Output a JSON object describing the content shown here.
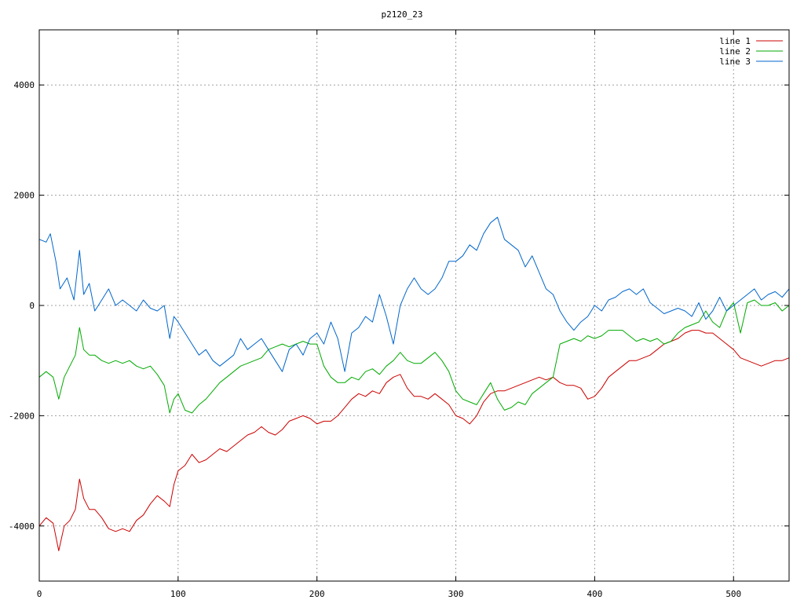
{
  "chart_data": {
    "type": "line",
    "title": "p2120_23",
    "xlabel": "",
    "ylabel": "",
    "xlim": [
      0,
      540
    ],
    "ylim": [
      -5000,
      5000
    ],
    "x_ticks": [
      0,
      100,
      200,
      300,
      400,
      500
    ],
    "y_ticks": [
      -4000,
      -2000,
      0,
      2000,
      4000
    ],
    "x_tick_labels": [
      "0",
      "100",
      "200",
      "300",
      "400",
      "500"
    ],
    "y_tick_labels": [
      "-4000",
      "-2000",
      "0",
      "2000",
      "4000"
    ],
    "grid": true,
    "legend_position": "top-right",
    "series": [
      {
        "name": "line 1",
        "color": "#cc0000",
        "x": [
          0,
          5,
          10,
          14,
          18,
          22,
          26,
          29,
          32,
          36,
          40,
          45,
          50,
          55,
          60,
          65,
          70,
          75,
          80,
          85,
          90,
          94,
          97,
          100,
          105,
          110,
          115,
          120,
          125,
          130,
          135,
          140,
          145,
          150,
          155,
          160,
          165,
          170,
          175,
          180,
          185,
          190,
          195,
          200,
          205,
          210,
          215,
          220,
          225,
          230,
          235,
          240,
          245,
          250,
          255,
          260,
          265,
          270,
          275,
          280,
          285,
          290,
          295,
          300,
          305,
          310,
          315,
          320,
          325,
          330,
          335,
          340,
          345,
          350,
          355,
          360,
          365,
          370,
          375,
          380,
          385,
          390,
          395,
          400,
          405,
          410,
          415,
          420,
          425,
          430,
          435,
          440,
          445,
          450,
          455,
          460,
          465,
          470,
          475,
          480,
          485,
          490,
          495,
          500,
          505,
          510,
          515,
          520,
          525,
          530,
          535,
          540
        ],
        "y": [
          -4000,
          -3850,
          -3950,
          -4450,
          -4000,
          -3900,
          -3700,
          -3150,
          -3500,
          -3700,
          -3700,
          -3850,
          -4050,
          -4100,
          -4050,
          -4100,
          -3900,
          -3800,
          -3600,
          -3450,
          -3550,
          -3650,
          -3250,
          -3000,
          -2900,
          -2700,
          -2850,
          -2800,
          -2700,
          -2600,
          -2650,
          -2550,
          -2450,
          -2350,
          -2300,
          -2200,
          -2300,
          -2350,
          -2250,
          -2100,
          -2050,
          -2000,
          -2050,
          -2150,
          -2100,
          -2100,
          -2000,
          -1850,
          -1700,
          -1600,
          -1650,
          -1550,
          -1600,
          -1400,
          -1300,
          -1250,
          -1500,
          -1650,
          -1650,
          -1700,
          -1600,
          -1700,
          -1800,
          -2000,
          -2050,
          -2150,
          -2000,
          -1750,
          -1600,
          -1550,
          -1550,
          -1500,
          -1450,
          -1400,
          -1350,
          -1300,
          -1350,
          -1300,
          -1400,
          -1450,
          -1450,
          -1500,
          -1700,
          -1650,
          -1500,
          -1300,
          -1200,
          -1100,
          -1000,
          -1000,
          -950,
          -900,
          -800,
          -700,
          -650,
          -600,
          -500,
          -450,
          -450,
          -500,
          -500,
          -600,
          -700,
          -800,
          -950,
          -1000,
          -1050,
          -1100,
          -1050,
          -1000,
          -1000,
          -950
        ]
      },
      {
        "name": "line 2",
        "color": "#00aa00",
        "x": [
          0,
          5,
          10,
          14,
          18,
          22,
          26,
          29,
          32,
          36,
          40,
          45,
          50,
          55,
          60,
          65,
          70,
          75,
          80,
          85,
          90,
          94,
          97,
          100,
          105,
          110,
          115,
          120,
          125,
          130,
          135,
          140,
          145,
          150,
          155,
          160,
          165,
          170,
          175,
          180,
          185,
          190,
          195,
          200,
          205,
          210,
          215,
          220,
          225,
          230,
          235,
          240,
          245,
          250,
          255,
          260,
          265,
          270,
          275,
          280,
          285,
          290,
          295,
          300,
          305,
          310,
          315,
          320,
          325,
          330,
          335,
          340,
          345,
          350,
          355,
          360,
          365,
          370,
          375,
          380,
          385,
          390,
          395,
          400,
          405,
          410,
          415,
          420,
          425,
          430,
          435,
          440,
          445,
          450,
          455,
          460,
          465,
          470,
          475,
          480,
          485,
          490,
          495,
          500,
          505,
          510,
          515,
          520,
          525,
          530,
          535,
          540
        ],
        "y": [
          -1300,
          -1200,
          -1300,
          -1700,
          -1300,
          -1100,
          -900,
          -400,
          -800,
          -900,
          -900,
          -1000,
          -1050,
          -1000,
          -1050,
          -1000,
          -1100,
          -1150,
          -1100,
          -1250,
          -1450,
          -1950,
          -1700,
          -1600,
          -1900,
          -1950,
          -1800,
          -1700,
          -1550,
          -1400,
          -1300,
          -1200,
          -1100,
          -1050,
          -1000,
          -950,
          -800,
          -750,
          -700,
          -750,
          -700,
          -650,
          -700,
          -700,
          -1100,
          -1300,
          -1400,
          -1400,
          -1300,
          -1350,
          -1200,
          -1150,
          -1250,
          -1100,
          -1000,
          -850,
          -1000,
          -1050,
          -1050,
          -950,
          -850,
          -1000,
          -1200,
          -1550,
          -1700,
          -1750,
          -1800,
          -1600,
          -1400,
          -1700,
          -1900,
          -1850,
          -1750,
          -1800,
          -1600,
          -1500,
          -1400,
          -1300,
          -700,
          -650,
          -600,
          -650,
          -550,
          -600,
          -550,
          -450,
          -450,
          -450,
          -550,
          -650,
          -600,
          -650,
          -600,
          -700,
          -650,
          -500,
          -400,
          -350,
          -300,
          -100,
          -300,
          -400,
          -100,
          50,
          -500,
          50,
          100,
          0,
          0,
          50,
          -100,
          0
        ]
      },
      {
        "name": "line 3",
        "color": "#0066cc",
        "x": [
          0,
          5,
          8,
          12,
          15,
          20,
          25,
          29,
          32,
          36,
          40,
          45,
          50,
          55,
          60,
          65,
          70,
          75,
          80,
          85,
          90,
          94,
          97,
          100,
          105,
          110,
          115,
          120,
          125,
          130,
          135,
          140,
          145,
          150,
          155,
          160,
          165,
          170,
          175,
          180,
          185,
          190,
          195,
          200,
          205,
          210,
          215,
          220,
          225,
          230,
          235,
          240,
          245,
          250,
          255,
          260,
          265,
          270,
          275,
          280,
          285,
          290,
          295,
          300,
          305,
          310,
          315,
          320,
          325,
          330,
          335,
          340,
          345,
          350,
          355,
          360,
          365,
          370,
          375,
          380,
          385,
          390,
          395,
          400,
          405,
          410,
          415,
          420,
          425,
          430,
          435,
          440,
          445,
          450,
          455,
          460,
          465,
          470,
          475,
          480,
          485,
          490,
          495,
          500,
          505,
          510,
          515,
          520,
          525,
          530,
          535,
          540
        ],
        "y": [
          1200,
          1150,
          1300,
          800,
          300,
          500,
          100,
          1000,
          200,
          400,
          -100,
          100,
          300,
          0,
          100,
          0,
          -100,
          100,
          -50,
          -100,
          0,
          -600,
          -200,
          -300,
          -500,
          -700,
          -900,
          -800,
          -1000,
          -1100,
          -1000,
          -900,
          -600,
          -800,
          -700,
          -600,
          -800,
          -1000,
          -1200,
          -800,
          -700,
          -900,
          -600,
          -500,
          -700,
          -300,
          -600,
          -1200,
          -500,
          -400,
          -200,
          -300,
          200,
          -200,
          -700,
          0,
          300,
          500,
          300,
          200,
          300,
          500,
          800,
          800,
          900,
          1100,
          1000,
          1300,
          1500,
          1600,
          1200,
          1100,
          1000,
          700,
          900,
          600,
          300,
          200,
          -100,
          -300,
          -450,
          -300,
          -200,
          0,
          -100,
          100,
          150,
          250,
          300,
          200,
          300,
          50,
          -50,
          -150,
          -100,
          -50,
          -100,
          -200,
          50,
          -250,
          -100,
          150,
          -100,
          0,
          100,
          200,
          300,
          100,
          200,
          250,
          150,
          300
        ]
      }
    ]
  }
}
